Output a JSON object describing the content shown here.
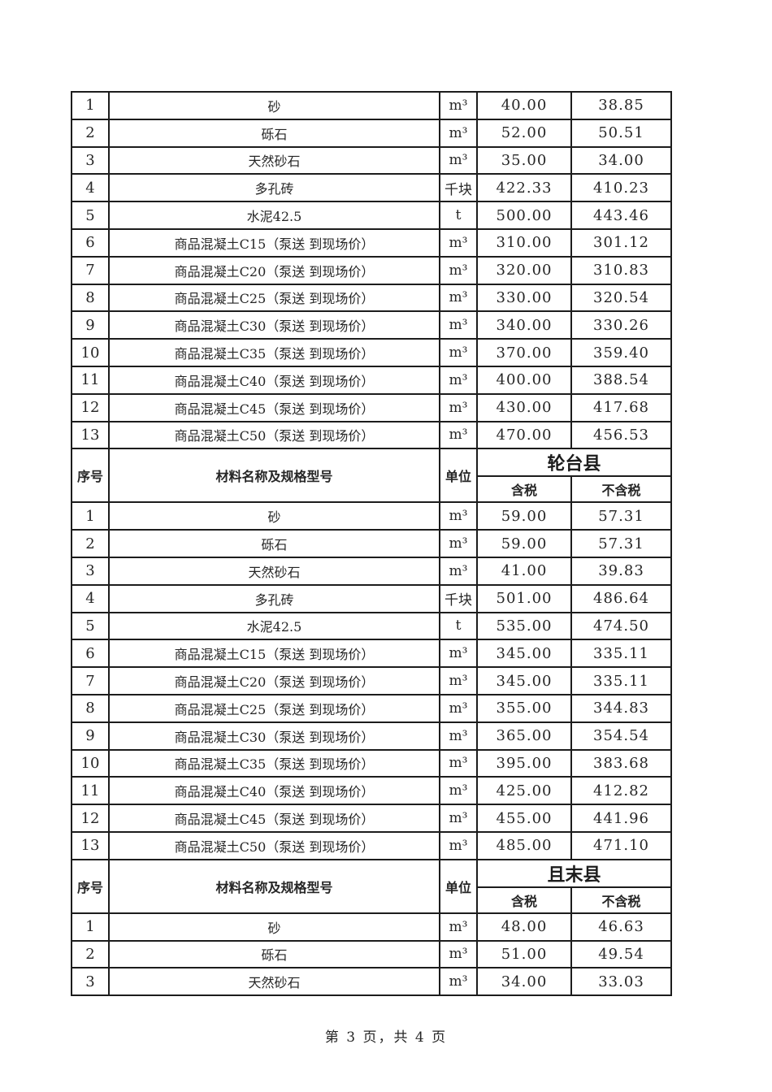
{
  "page": {
    "footer": "第 3 页，共 4 页"
  },
  "colors": {
    "background": "#ffffff",
    "border": "#1c1c1c",
    "text": "#262626"
  },
  "table": {
    "headers": {
      "seq": "序号",
      "material": "材料名称及规格型号",
      "unit": "单位",
      "tax_included": "含税",
      "tax_excluded": "不含税"
    },
    "sections": [
      {
        "county": null,
        "rows": [
          [
            "1",
            "砂",
            "m³",
            "40.00",
            "38.85"
          ],
          [
            "2",
            "砾石",
            "m³",
            "52.00",
            "50.51"
          ],
          [
            "3",
            "天然砂石",
            "m³",
            "35.00",
            "34.00"
          ],
          [
            "4",
            "多孔砖",
            "千块",
            "422.33",
            "410.23"
          ],
          [
            "5",
            "水泥42.5",
            "t",
            "500.00",
            "443.46"
          ],
          [
            "6",
            "商品混凝土C15（泵送 到现场价）",
            "m³",
            "310.00",
            "301.12"
          ],
          [
            "7",
            "商品混凝土C20（泵送 到现场价）",
            "m³",
            "320.00",
            "310.83"
          ],
          [
            "8",
            "商品混凝土C25（泵送 到现场价）",
            "m³",
            "330.00",
            "320.54"
          ],
          [
            "9",
            "商品混凝土C30（泵送 到现场价）",
            "m³",
            "340.00",
            "330.26"
          ],
          [
            "10",
            "商品混凝土C35（泵送 到现场价）",
            "m³",
            "370.00",
            "359.40"
          ],
          [
            "11",
            "商品混凝土C40（泵送 到现场价）",
            "m³",
            "400.00",
            "388.54"
          ],
          [
            "12",
            "商品混凝土C45（泵送 到现场价）",
            "m³",
            "430.00",
            "417.68"
          ],
          [
            "13",
            "商品混凝土C50（泵送 到现场价）",
            "m³",
            "470.00",
            "456.53"
          ]
        ]
      },
      {
        "county": "轮台县",
        "rows": [
          [
            "1",
            "砂",
            "m³",
            "59.00",
            "57.31"
          ],
          [
            "2",
            "砾石",
            "m³",
            "59.00",
            "57.31"
          ],
          [
            "3",
            "天然砂石",
            "m³",
            "41.00",
            "39.83"
          ],
          [
            "4",
            "多孔砖",
            "千块",
            "501.00",
            "486.64"
          ],
          [
            "5",
            "水泥42.5",
            "t",
            "535.00",
            "474.50"
          ],
          [
            "6",
            "商品混凝土C15（泵送 到现场价）",
            "m³",
            "345.00",
            "335.11"
          ],
          [
            "7",
            "商品混凝土C20（泵送 到现场价）",
            "m³",
            "345.00",
            "335.11"
          ],
          [
            "8",
            "商品混凝土C25（泵送 到现场价）",
            "m³",
            "355.00",
            "344.83"
          ],
          [
            "9",
            "商品混凝土C30（泵送 到现场价）",
            "m³",
            "365.00",
            "354.54"
          ],
          [
            "10",
            "商品混凝土C35（泵送 到现场价）",
            "m³",
            "395.00",
            "383.68"
          ],
          [
            "11",
            "商品混凝土C40（泵送 到现场价）",
            "m³",
            "425.00",
            "412.82"
          ],
          [
            "12",
            "商品混凝土C45（泵送 到现场价）",
            "m³",
            "455.00",
            "441.96"
          ],
          [
            "13",
            "商品混凝土C50（泵送 到现场价）",
            "m³",
            "485.00",
            "471.10"
          ]
        ]
      },
      {
        "county": "且末县",
        "rows": [
          [
            "1",
            "砂",
            "m³",
            "48.00",
            "46.63"
          ],
          [
            "2",
            "砾石",
            "m³",
            "51.00",
            "49.54"
          ],
          [
            "3",
            "天然砂石",
            "m³",
            "34.00",
            "33.03"
          ]
        ]
      }
    ]
  }
}
